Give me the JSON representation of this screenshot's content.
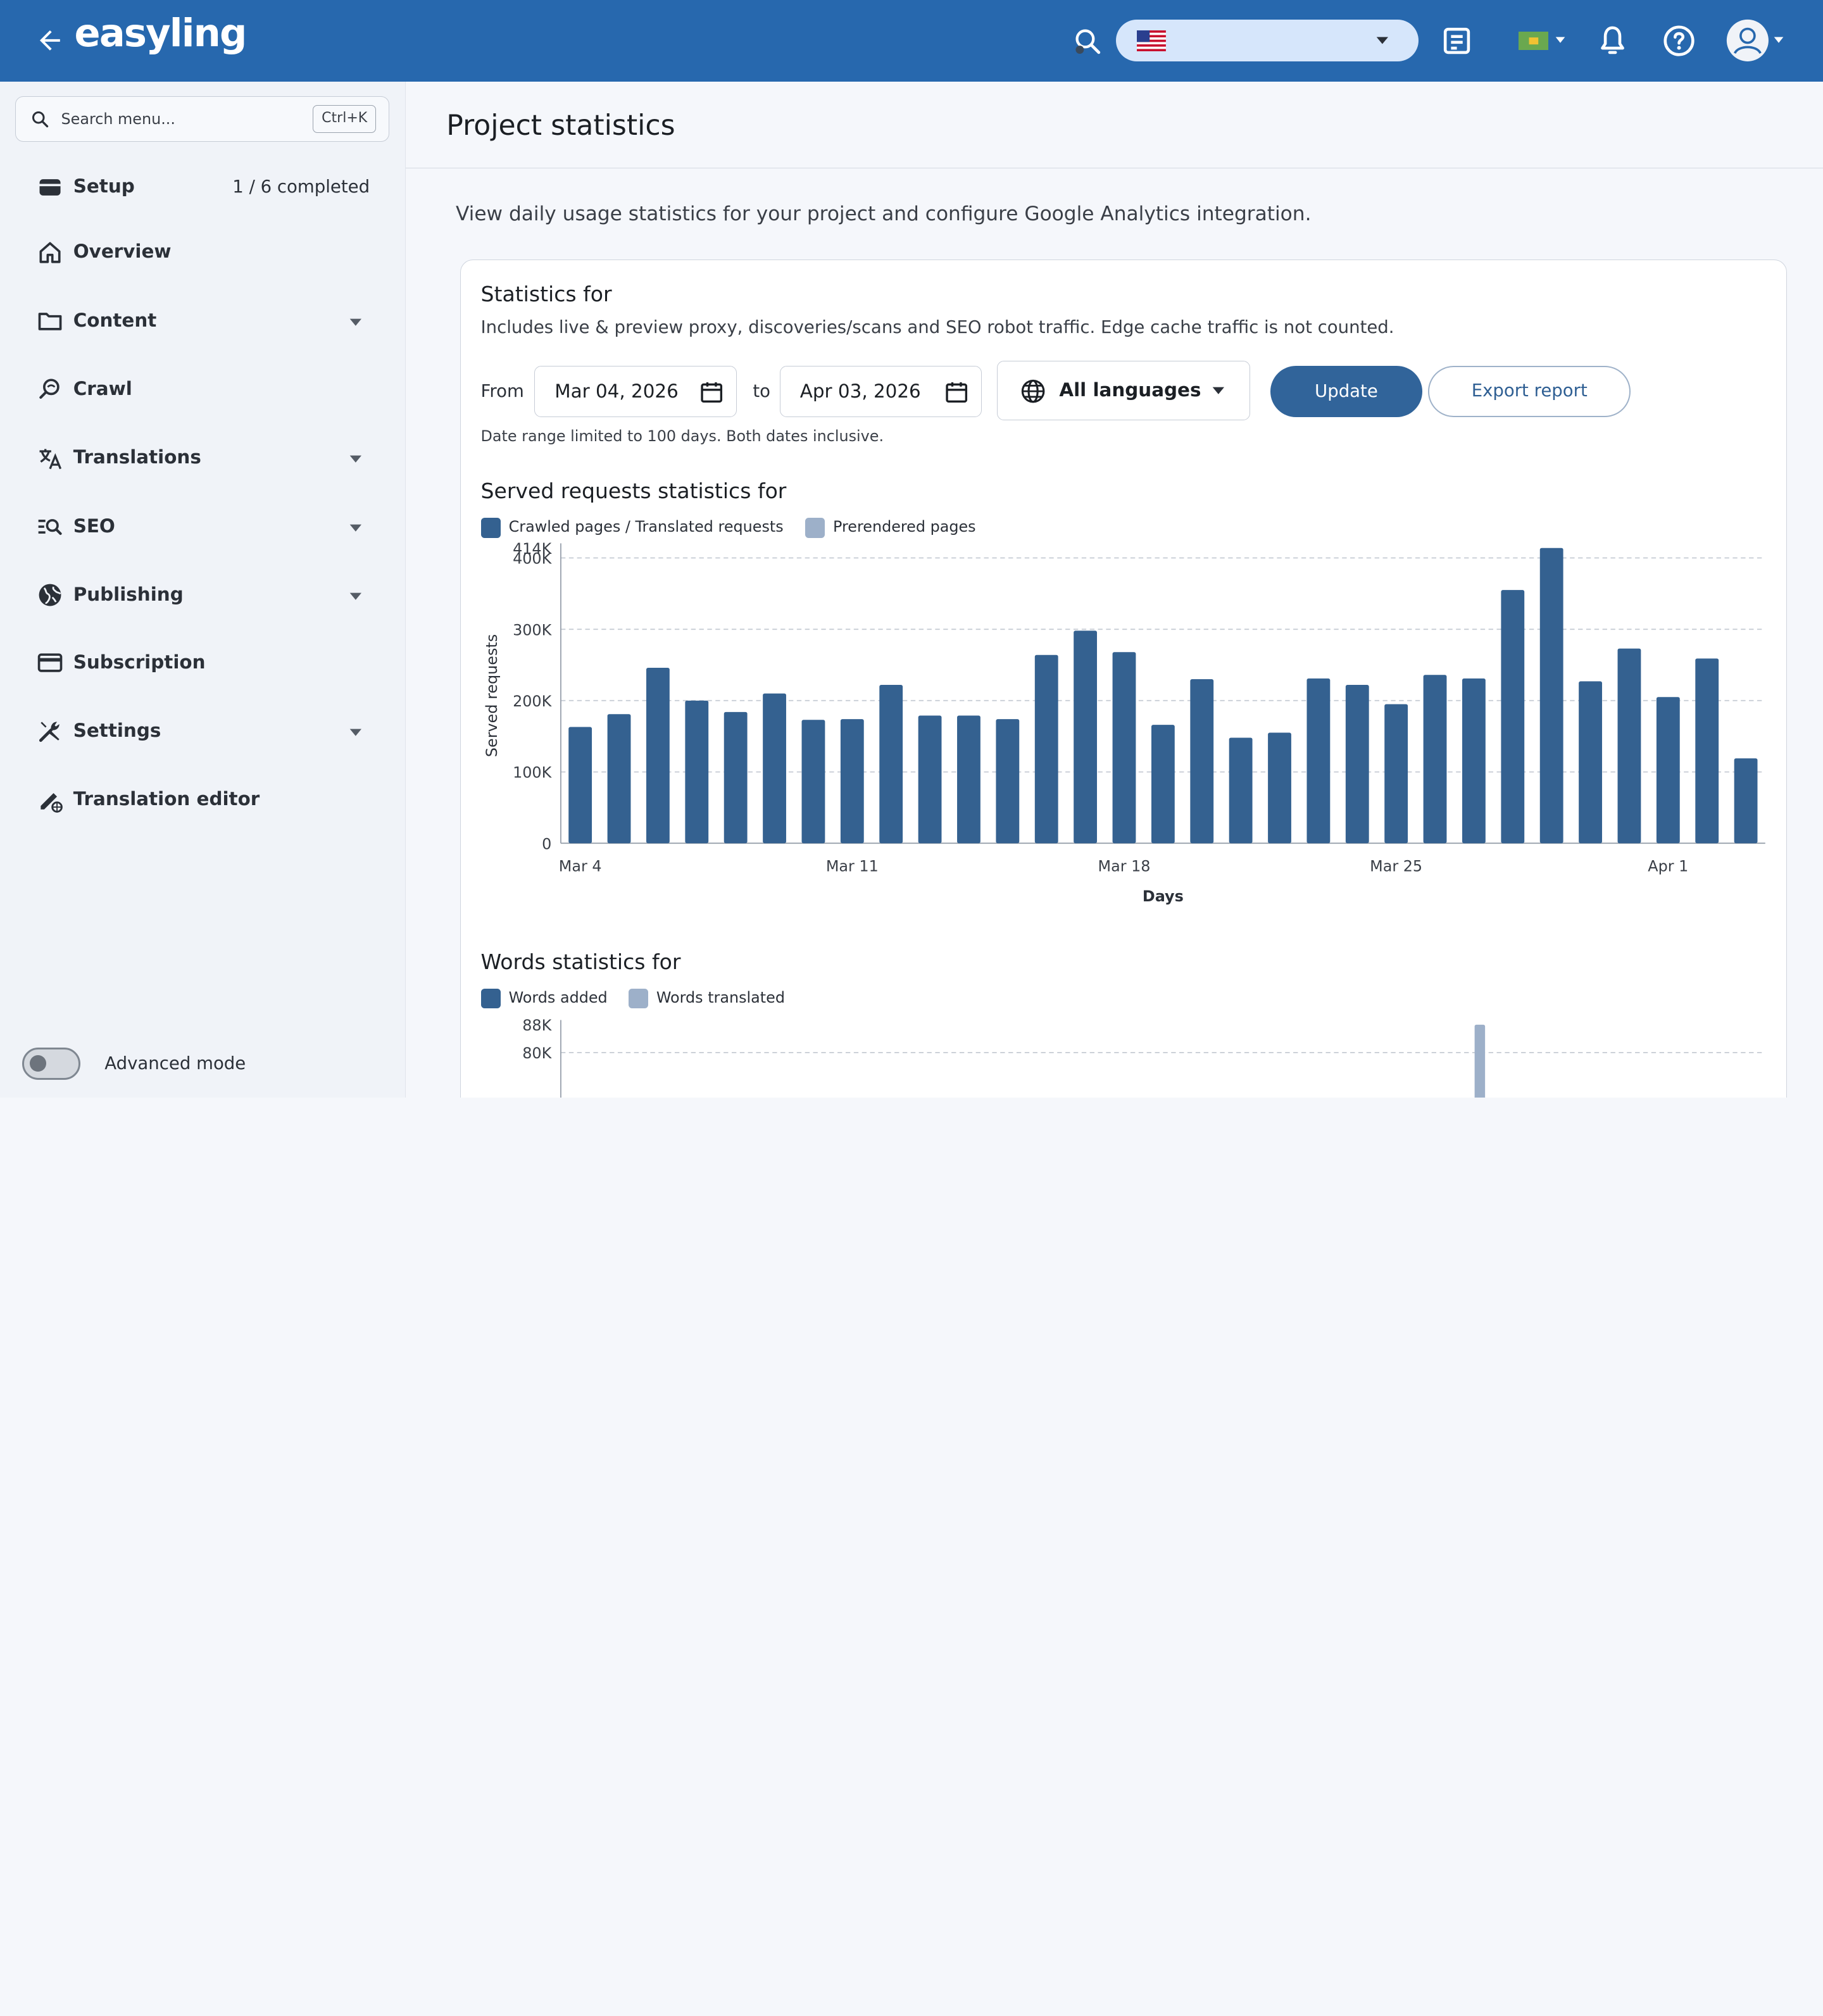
{
  "topbar": {
    "logo": "easyling",
    "colors": {
      "bar": "#2768ae",
      "select": "#d6e6fb"
    }
  },
  "sidebar": {
    "search_placeholder": "Search menu...",
    "search_shortcut": "Ctrl+K",
    "items": [
      {
        "label": "Setup",
        "extra": "1 / 6 completed",
        "icon": "card-stack-icon",
        "dropdown": false
      },
      {
        "label": "Overview",
        "icon": "home-icon",
        "dropdown": false
      },
      {
        "label": "Content",
        "icon": "folder-icon",
        "dropdown": true
      },
      {
        "label": "Crawl",
        "icon": "crawl-search-icon",
        "dropdown": false
      },
      {
        "label": "Translations",
        "icon": "translate-icon",
        "dropdown": true
      },
      {
        "label": "SEO",
        "icon": "seo-icon",
        "dropdown": true
      },
      {
        "label": "Publishing",
        "icon": "globe-icon",
        "dropdown": true
      },
      {
        "label": "Subscription",
        "icon": "credit-card-icon",
        "dropdown": false
      },
      {
        "label": "Settings",
        "icon": "tools-icon",
        "dropdown": true
      },
      {
        "label": "Translation editor",
        "icon": "edit-globe-icon",
        "dropdown": false
      }
    ],
    "advanced_mode_label": "Advanced mode"
  },
  "main": {
    "title": "Project statistics",
    "intro": "View daily usage statistics for your project and configure Google Analytics integration.",
    "stats_title": "Statistics for",
    "stats_subtitle": "Includes live & preview proxy, discoveries/scans and SEO robot traffic. Edge cache traffic is not counted.",
    "from_label": "From",
    "from_value": "Mar 04, 2026",
    "to_label": "to",
    "to_value": "Apr 03, 2026",
    "language_value": "All languages",
    "update_label": "Update",
    "export_label": "Export report",
    "date_note": "Date range limited to 100 days. Both dates inclusive.",
    "served_title": "Served requests statistics for",
    "served_legend": [
      "Crawled pages / Translated requests",
      "Prerendered pages"
    ],
    "words_title": "Words statistics for",
    "words_legend": [
      "Words added",
      "Words translated"
    ]
  },
  "chart_data": [
    {
      "type": "bar",
      "title": "Served requests statistics for",
      "xlabel": "Days",
      "ylabel": "Served requests",
      "ylim": [
        0,
        414000
      ],
      "yticks": [
        "0",
        "100K",
        "200K",
        "300K",
        "400K",
        "414K"
      ],
      "xticks": [
        "Mar 4",
        "Mar 11",
        "Mar 18",
        "Mar 25",
        "Apr 1"
      ],
      "x": [
        "Mar 4",
        "Mar 5",
        "Mar 6",
        "Mar 7",
        "Mar 8",
        "Mar 9",
        "Mar 10",
        "Mar 11",
        "Mar 12",
        "Mar 13",
        "Mar 14",
        "Mar 15",
        "Mar 16",
        "Mar 17",
        "Mar 18",
        "Mar 19",
        "Mar 20",
        "Mar 21",
        "Mar 22",
        "Mar 23",
        "Mar 24",
        "Mar 25",
        "Mar 26",
        "Mar 27",
        "Mar 28",
        "Mar 29",
        "Mar 30",
        "Mar 31",
        "Apr 1",
        "Apr 2",
        "Apr 3"
      ],
      "series": [
        {
          "name": "Crawled pages / Translated requests",
          "color": "#346190",
          "values": [
            163000,
            181000,
            246000,
            200000,
            184000,
            210000,
            173000,
            174000,
            222000,
            179000,
            179000,
            174000,
            264000,
            298000,
            268000,
            166000,
            230000,
            148000,
            155000,
            231000,
            222000,
            195000,
            236000,
            231000,
            355000,
            414000,
            227000,
            273000,
            205000,
            259000,
            119000
          ]
        },
        {
          "name": "Prerendered pages",
          "color": "#9db0c9",
          "values": [
            0,
            0,
            0,
            0,
            0,
            0,
            0,
            0,
            0,
            0,
            0,
            0,
            0,
            0,
            0,
            0,
            0,
            0,
            0,
            0,
            0,
            0,
            0,
            0,
            0,
            0,
            0,
            0,
            0,
            0,
            0
          ]
        }
      ],
      "grid": true,
      "legend": "top-left"
    },
    {
      "type": "bar",
      "title": "Words statistics for",
      "yticks": [
        "80K",
        "88K"
      ],
      "ylim": [
        0,
        88000
      ],
      "series": [
        {
          "name": "Words added",
          "color": "#346190",
          "values": []
        },
        {
          "name": "Words translated",
          "color": "#9db0c9",
          "values": [
            88000
          ]
        }
      ],
      "grid": true,
      "legend": "top-left"
    }
  ]
}
